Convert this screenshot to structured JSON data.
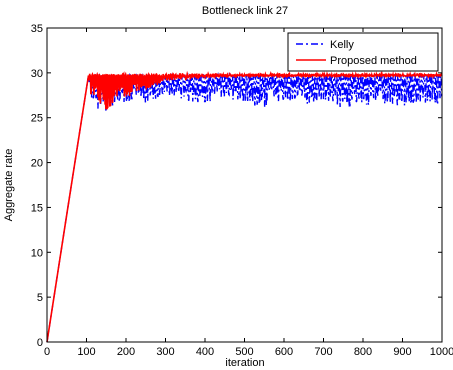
{
  "chart_data": {
    "type": "line",
    "title": "Bottleneck link 27",
    "xlabel": "iteration",
    "ylabel": "Aggregate rate",
    "xlim": [
      0,
      1000
    ],
    "ylim": [
      0,
      35
    ],
    "xticks": [
      0,
      100,
      200,
      300,
      400,
      500,
      600,
      700,
      800,
      900,
      1000
    ],
    "yticks": [
      0,
      5,
      10,
      15,
      20,
      25,
      30,
      35
    ],
    "grid": false,
    "legend_position": "top-right",
    "ramp_end_iteration": 105,
    "steady_level": 29.7,
    "series": [
      {
        "name": "Kelly",
        "color": "#0000ff",
        "dash": "dash-dot",
        "x": [
          0,
          50,
          105,
          110,
          130,
          150,
          170,
          200,
          250,
          300,
          350,
          400,
          450,
          500,
          550,
          600,
          650,
          700,
          750,
          800,
          850,
          900,
          950,
          1000
        ],
        "y": [
          0,
          14.2,
          29.7,
          28.0,
          27.0,
          26.8,
          27.4,
          27.6,
          27.5,
          28.2,
          27.7,
          27.5,
          28.0,
          27.4,
          27.2,
          27.8,
          27.4,
          27.6,
          27.1,
          27.3,
          27.5,
          27.2,
          27.6,
          27.3
        ],
        "y_upper": 29.8
      },
      {
        "name": "Proposed method",
        "color": "#ff0000",
        "dash": "solid",
        "x": [
          0,
          50,
          105,
          110,
          130,
          150,
          160,
          200,
          250,
          300,
          350,
          400,
          500,
          600,
          700,
          800,
          900,
          1000
        ],
        "y": [
          0,
          14.2,
          29.7,
          28.2,
          27.8,
          26.6,
          27.2,
          28.0,
          28.6,
          29.3,
          29.5,
          29.6,
          29.7,
          29.7,
          29.7,
          29.7,
          29.7,
          29.7
        ],
        "y_upper": 29.9
      }
    ]
  }
}
